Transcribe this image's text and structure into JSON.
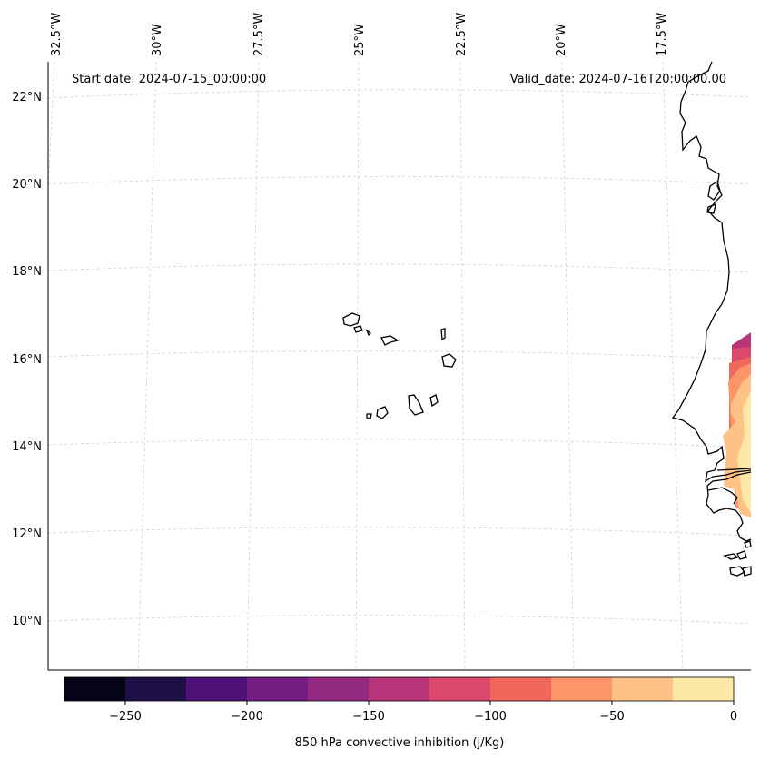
{
  "header": {
    "start_date": "Start date: 2024-07-15_00:00:00",
    "valid_date": "Valid_date: 2024-07-16T20:00:00.00"
  },
  "map": {
    "region": "Cape Verde islands and West African coast",
    "lon_labels": [
      "32.5°W",
      "30°W",
      "27.5°W",
      "25°W",
      "22.5°W",
      "20°W",
      "17.5°W"
    ],
    "lat_labels": [
      "22°N",
      "20°N",
      "18°N",
      "16°N",
      "14°N",
      "12°N",
      "10°N"
    ],
    "field_levels": [
      -150,
      -125,
      -100,
      -75,
      -50,
      -25,
      0
    ]
  },
  "colorbar": {
    "label": "850 hPa convective inhibition (j/Kg)",
    "tick_labels": [
      "−250",
      "−200",
      "−150",
      "−100",
      "−50",
      "0"
    ],
    "levels": [
      -275,
      -250,
      -225,
      -200,
      -175,
      -150,
      -125,
      -100,
      -75,
      -50,
      -25,
      0
    ],
    "colors": [
      "#050416",
      "#1f1147",
      "#4f1078",
      "#721d81",
      "#932a80",
      "#b73679",
      "#dc4869",
      "#f2675b",
      "#fe9568",
      "#fec186",
      "#fde8a5"
    ]
  }
}
